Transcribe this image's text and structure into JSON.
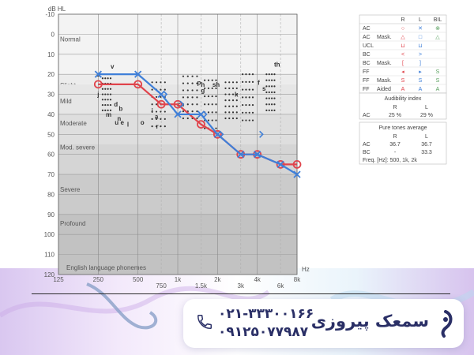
{
  "chart_data": {
    "type": "audiogram",
    "y_unit": "dB HL",
    "x_unit": "Hz",
    "y_range": [
      -10,
      120
    ],
    "y_ticks": [
      "-10",
      "0",
      "10",
      "20",
      "30",
      "40",
      "50",
      "60",
      "70",
      "80",
      "90",
      "100",
      "110",
      "120"
    ],
    "x_ticks": [
      {
        "hz": 125,
        "label": "125"
      },
      {
        "hz": 250,
        "label": "250"
      },
      {
        "hz": 500,
        "label": "500"
      },
      {
        "hz": 750,
        "label": "750"
      },
      {
        "hz": 1000,
        "label": "1k"
      },
      {
        "hz": 1500,
        "label": "1.5k"
      },
      {
        "hz": 2000,
        "label": "2k"
      },
      {
        "hz": 3000,
        "label": "3k"
      },
      {
        "hz": 4000,
        "label": "4k"
      },
      {
        "hz": 6000,
        "label": "6k"
      },
      {
        "hz": 8000,
        "label": "8k"
      }
    ],
    "bands": [
      {
        "label": "Normal",
        "from": -10,
        "to": 20,
        "color": "#f3f3f3"
      },
      {
        "label": "Slight",
        "from": 20,
        "to": 25,
        "color": "#ececec"
      },
      {
        "label": "Mild",
        "from": 25,
        "to": 40,
        "color": "#e6e6e6"
      },
      {
        "label": "Moderate",
        "from": 40,
        "to": 55,
        "color": "#dedede"
      },
      {
        "label": "Mod. severe",
        "from": 55,
        "to": 70,
        "color": "#d5d5d5"
      },
      {
        "label": "Severe",
        "from": 70,
        "to": 90,
        "color": "#cbcbcb"
      },
      {
        "label": "Profound",
        "from": 90,
        "to": 120,
        "color": "#c2c2c2"
      }
    ],
    "band_label_values": [
      2,
      25,
      33,
      44,
      56,
      77,
      94
    ],
    "banana_caption": "English language phonemes",
    "series": [
      {
        "ear": "R",
        "conduction": "AC",
        "marker": "circle",
        "color": "#e0444c",
        "points": [
          [
            250,
            25
          ],
          [
            500,
            25
          ],
          [
            750,
            35
          ],
          [
            1000,
            35
          ],
          [
            1500,
            45
          ],
          [
            2000,
            50
          ],
          [
            3000,
            60
          ],
          [
            4000,
            60
          ],
          [
            6000,
            65
          ],
          [
            8000,
            65
          ]
        ]
      },
      {
        "ear": "L",
        "conduction": "AC",
        "marker": "x",
        "color": "#3f7fd8",
        "points": [
          [
            250,
            20
          ],
          [
            500,
            20
          ],
          [
            750,
            30
          ],
          [
            1000,
            40
          ],
          [
            1500,
            40
          ],
          [
            2000,
            50
          ],
          [
            3000,
            60
          ],
          [
            4000,
            60
          ],
          [
            6000,
            65
          ],
          [
            8000,
            70
          ]
        ]
      },
      {
        "ear": "L",
        "conduction": "BC",
        "marker": ">",
        "color": "#3f7fd8",
        "points": [
          [
            750,
            30
          ],
          [
            1000,
            35
          ],
          [
            1500,
            40
          ],
          [
            2000,
            50
          ],
          [
            4000,
            50
          ]
        ]
      }
    ],
    "phonemes": [
      {
        "t": "v",
        "hz": 320,
        "db": 16
      },
      {
        "t": "z",
        "hz": 250,
        "db": 20
      },
      {
        "t": "j",
        "hz": 250,
        "db": 30
      },
      {
        "t": "d",
        "hz": 340,
        "db": 35
      },
      {
        "t": "b",
        "hz": 370,
        "db": 37
      },
      {
        "t": "m",
        "hz": 300,
        "db": 40
      },
      {
        "t": "n",
        "hz": 360,
        "db": 42
      },
      {
        "t": "u",
        "hz": 345,
        "db": 44
      },
      {
        "t": "e",
        "hz": 380,
        "db": 44
      },
      {
        "t": "l",
        "hz": 420,
        "db": 45
      },
      {
        "t": "o",
        "hz": 540,
        "db": 44
      },
      {
        "t": "i",
        "hz": 640,
        "db": 38
      },
      {
        "t": "a",
        "hz": 690,
        "db": 41
      },
      {
        "t": "r",
        "hz": 700,
        "db": 46
      },
      {
        "t": "p",
        "hz": 1450,
        "db": 24
      },
      {
        "t": "h",
        "hz": 1550,
        "db": 25
      },
      {
        "t": "g",
        "hz": 1550,
        "db": 28
      },
      {
        "t": "ch",
        "hz": 1050,
        "db": 35
      },
      {
        "t": "sh",
        "hz": 1950,
        "db": 25
      },
      {
        "t": "k",
        "hz": 2780,
        "db": 30
      },
      {
        "t": "f",
        "hz": 4100,
        "db": 24
      },
      {
        "t": "s",
        "hz": 4500,
        "db": 27
      },
      {
        "t": "th",
        "hz": 5650,
        "db": 15
      }
    ],
    "dot_clusters": [
      {
        "f0": 270,
        "f1": 310,
        "d0": 22,
        "d1": 38
      },
      {
        "f0": 640,
        "f1": 800,
        "d0": 24,
        "d1": 46
      },
      {
        "f0": 1100,
        "f1": 1400,
        "d0": 21,
        "d1": 42
      },
      {
        "f0": 1600,
        "f1": 1950,
        "d0": 23,
        "d1": 47
      },
      {
        "f0": 2300,
        "f1": 2800,
        "d0": 24,
        "d1": 42
      },
      {
        "f0": 3100,
        "f1": 3700,
        "d0": 20,
        "d1": 43
      },
      {
        "f0": 4700,
        "f1": 5400,
        "d0": 20,
        "d1": 38
      }
    ]
  },
  "legend": {
    "header": [
      "R",
      "L",
      "BIL"
    ],
    "rows": [
      {
        "label": "AC",
        "mask": "",
        "r": "○",
        "l": "✕",
        "bil": "⊗"
      },
      {
        "label": "AC",
        "mask": "Mask.",
        "r": "△",
        "l": "□",
        "bil": "△"
      },
      {
        "label": "UCL",
        "mask": "",
        "r": "⊔",
        "l": "⊔",
        "bil": ""
      },
      {
        "label": "BC",
        "mask": "",
        "r": "<",
        "l": ">",
        "bil": ""
      },
      {
        "label": "BC",
        "mask": "Mask.",
        "r": "[",
        "l": "]",
        "bil": ""
      },
      {
        "label": "FF",
        "mask": "",
        "r": "◂",
        "l": "▸",
        "bil": "S"
      },
      {
        "label": "FF",
        "mask": "Mask.",
        "r": "S",
        "l": "S",
        "bil": "S"
      },
      {
        "label": "FF",
        "mask": "Aided",
        "r": "A",
        "l": "A",
        "bil": "A"
      }
    ]
  },
  "audibility": {
    "title": "Audibility index",
    "header": [
      "R",
      "L"
    ],
    "row_label": "AC",
    "r": "25 %",
    "l": "29 %"
  },
  "pta": {
    "title": "Pure tones average",
    "header": [
      "R",
      "L"
    ],
    "rows": [
      {
        "label": "AC",
        "r": "36.7",
        "l": "36.7"
      },
      {
        "label": "BC",
        "r": "-",
        "l": "33.3"
      }
    ],
    "freq_note": "Freq. [Hz]: 500, 1k, 2k"
  },
  "footer": {
    "phone1": "۰۲۱-۳۳۳۰۰۱۶۶",
    "phone2": "۰۹۱۲۵۰۷۷۹۸۷",
    "brand": "سمعک پیروزی"
  }
}
